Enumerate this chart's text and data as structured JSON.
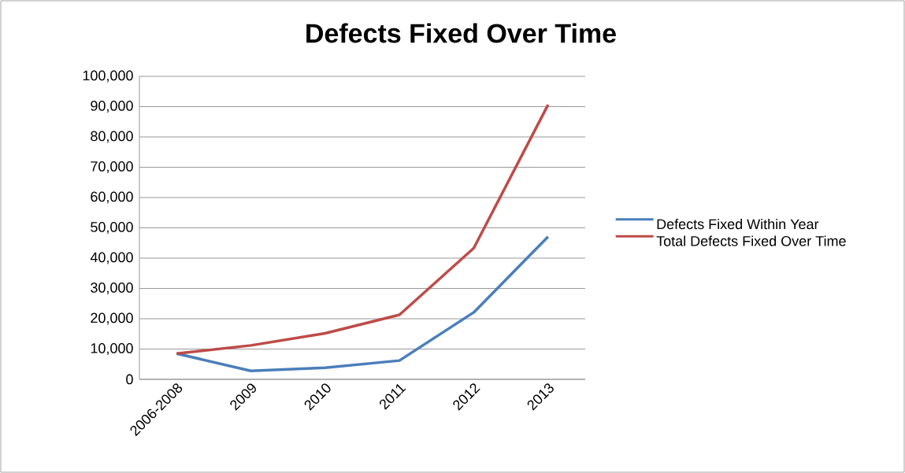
{
  "chart_data": {
    "type": "line",
    "title": "Defects Fixed Over Time",
    "categories": [
      "2006-2008",
      "2009",
      "2010",
      "2011",
      "2012",
      "2013"
    ],
    "series": [
      {
        "name": "Defects Fixed Within Year",
        "color": "#4a7ebb",
        "values": [
          8500,
          2800,
          3800,
          6200,
          22100,
          47100
        ]
      },
      {
        "name": "Total Defects Fixed Over Time",
        "color": "#be4b48",
        "values": [
          8500,
          11200,
          15200,
          21300,
          43300,
          90600
        ]
      }
    ],
    "ylim": [
      0,
      100000
    ],
    "yticks": [
      {
        "value": 0,
        "label": "0"
      },
      {
        "value": 10000,
        "label": "10,000"
      },
      {
        "value": 20000,
        "label": "20,000"
      },
      {
        "value": 30000,
        "label": "30,000"
      },
      {
        "value": 40000,
        "label": "40,000"
      },
      {
        "value": 50000,
        "label": "50,000"
      },
      {
        "value": 60000,
        "label": "60,000"
      },
      {
        "value": 70000,
        "label": "70,000"
      },
      {
        "value": 80000,
        "label": "80,000"
      },
      {
        "value": 90000,
        "label": "90,000"
      },
      {
        "value": 100000,
        "label": "100,000"
      }
    ],
    "grid": "y",
    "legend": "right",
    "marker": "none",
    "line_style": "solid"
  }
}
